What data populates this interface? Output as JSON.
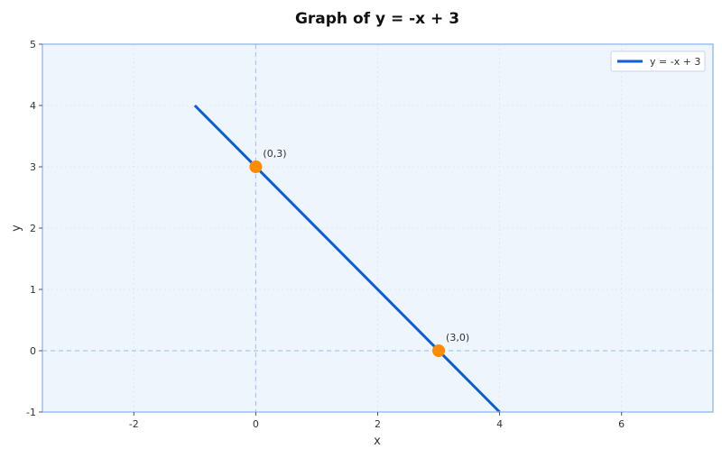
{
  "chart_data": {
    "type": "line",
    "title": "Graph of y = -x + 3",
    "xlabel": "x",
    "ylabel": "y",
    "xlim": [
      -3.5,
      7.5
    ],
    "ylim": [
      -1,
      5
    ],
    "xticks": [
      -2,
      0,
      2,
      4,
      6
    ],
    "yticks": [
      -1,
      0,
      1,
      2,
      3,
      4,
      5
    ],
    "grid": true,
    "legend_position": "top-right",
    "series": [
      {
        "name": "y = -x + 3",
        "color": "#0b5ed7",
        "x": [
          -1,
          4
        ],
        "y": [
          4,
          -1
        ]
      }
    ],
    "highlighted_points": [
      {
        "x": 0,
        "y": 3,
        "label": "(0,3)",
        "color": "#ff8c00"
      },
      {
        "x": 3,
        "y": 0,
        "label": "(3,0)",
        "color": "#ff8c00"
      }
    ],
    "reference_lines": {
      "x_zero": true,
      "y_zero": true
    },
    "colors": {
      "plot_background": "#eef5fd",
      "frame": "#8fb6ec",
      "reference": "#a9c7f5",
      "grid": "#dbe6f3"
    }
  }
}
